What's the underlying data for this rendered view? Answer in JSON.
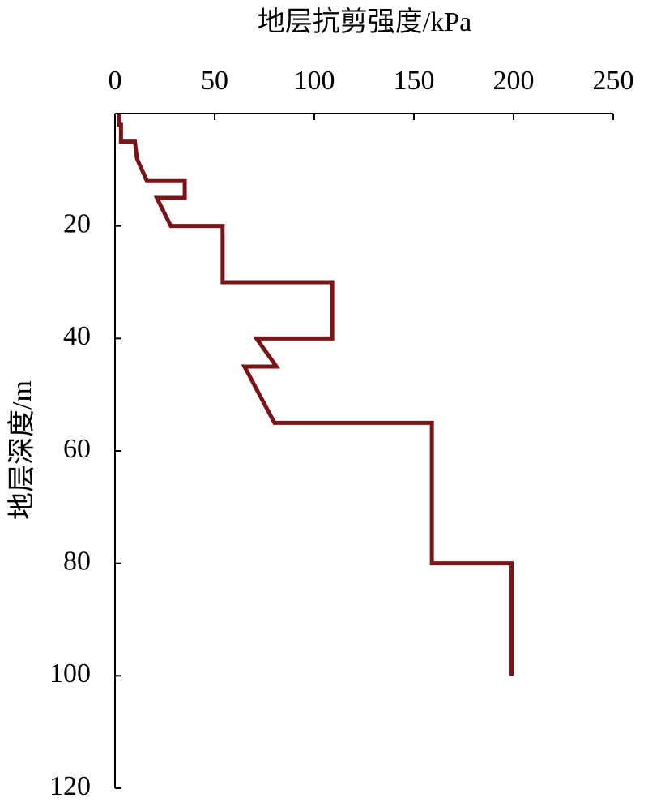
{
  "chart_data": {
    "type": "line",
    "title": "地层抗剪强度/kPa",
    "x_label": "地层抗剪强度/kPa",
    "y_label": "地层深度/m",
    "x": [
      2,
      2,
      3,
      3,
      10,
      11,
      16,
      35,
      35,
      21,
      28,
      54,
      54,
      109,
      109,
      71,
      81,
      65,
      80,
      159,
      159,
      199,
      199
    ],
    "series": [
      {
        "color": "#7b1416",
        "values": [
          0,
          2,
          2,
          5,
          5,
          8,
          12,
          12,
          15,
          15,
          20,
          20,
          30,
          30,
          40,
          40,
          45,
          45,
          55,
          55,
          80,
          80,
          100
        ]
      }
    ],
    "xlim": [
      0,
      250
    ],
    "xticks": [
      0,
      50,
      100,
      150,
      200,
      250
    ],
    "ylim": [
      0,
      120
    ],
    "yticks": [
      20,
      40,
      60,
      80,
      100,
      120
    ],
    "y_inverted": true,
    "x_axis_position": "top"
  }
}
